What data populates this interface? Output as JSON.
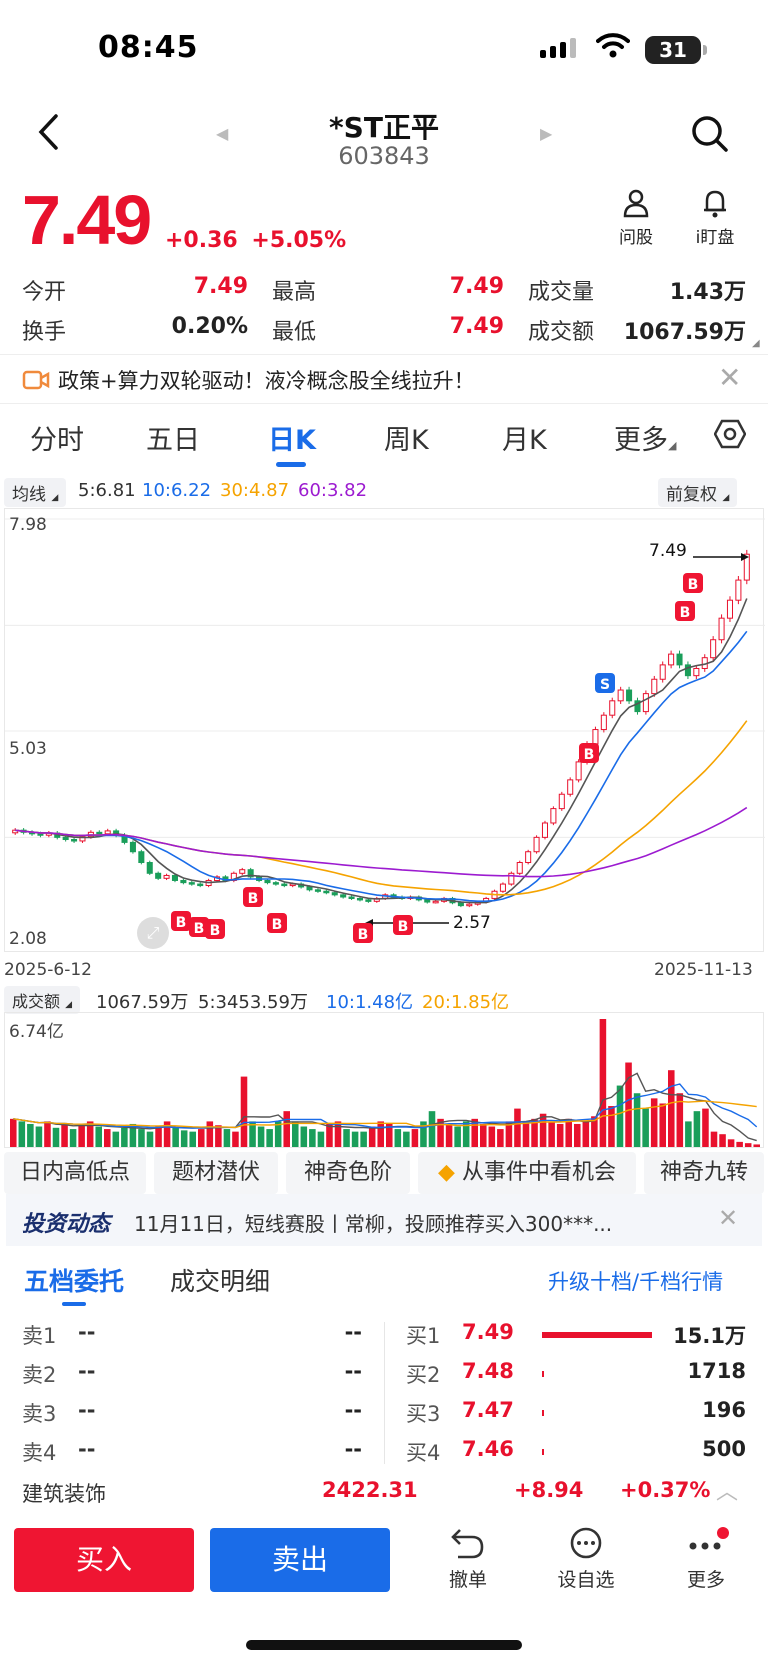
{
  "status_bar": {
    "time": "08:45",
    "battery": "31"
  },
  "header": {
    "name": "*ST正平",
    "code": "603843"
  },
  "quote": {
    "price": "7.49",
    "change": "+0.36",
    "change_pct": "+5.05%"
  },
  "actions": {
    "ask": "问股",
    "watch": "i盯盘"
  },
  "stats": {
    "open_label": "今开",
    "open": "7.49",
    "high_label": "最高",
    "high": "7.49",
    "vol_label": "成交量",
    "vol": "1.43万",
    "turn_label": "换手",
    "turn": "0.20%",
    "low_label": "最低",
    "low": "7.49",
    "amt_label": "成交额",
    "amt": "1067.59万"
  },
  "banner": {
    "text": "政策+算力双轮驱动！液冷概念股全线拉升！"
  },
  "tabs": [
    "分时",
    "五日",
    "日K",
    "周K",
    "月K",
    "更多"
  ],
  "ma_bar": {
    "label": "均线",
    "ma5": "5:6.81",
    "ma10": "10:6.22",
    "ma30": "30:4.87",
    "ma60": "60:3.82",
    "adjust": "前复权"
  },
  "chart": {
    "y_top": "7.98",
    "y_mid": "5.03",
    "y_bot": "2.08",
    "x_start": "2025-6-12",
    "x_end": "2025-11-13",
    "last_label": "7.49",
    "low_label": "2.57"
  },
  "chart_data": {
    "type": "candlestick",
    "ylim": [
      2.08,
      7.98
    ],
    "close": [
      3.65,
      3.62,
      3.6,
      3.58,
      3.61,
      3.55,
      3.52,
      3.5,
      3.56,
      3.62,
      3.6,
      3.64,
      3.58,
      3.48,
      3.35,
      3.2,
      3.05,
      2.98,
      3.02,
      2.95,
      2.92,
      2.9,
      2.88,
      2.95,
      3.0,
      2.95,
      3.05,
      3.1,
      3.0,
      2.95,
      2.92,
      2.9,
      2.88,
      2.9,
      2.86,
      2.82,
      2.8,
      2.78,
      2.75,
      2.72,
      2.7,
      2.68,
      2.66,
      2.7,
      2.75,
      2.72,
      2.7,
      2.72,
      2.68,
      2.65,
      2.66,
      2.7,
      2.64,
      2.6,
      2.62,
      2.65,
      2.7,
      2.8,
      2.9,
      3.05,
      3.2,
      3.35,
      3.55,
      3.75,
      3.95,
      4.15,
      4.35,
      4.6,
      4.85,
      5.05,
      5.25,
      5.45,
      5.6,
      5.45,
      5.3,
      5.55,
      5.75,
      5.95,
      6.1,
      5.95,
      5.8,
      5.9,
      6.05,
      6.3,
      6.6,
      6.85,
      7.13,
      7.49
    ]
  },
  "volume": {
    "label": "成交额",
    "value": "1067.59万",
    "ma5": "5:3453.59万",
    "ma10": "10:1.48亿",
    "ma20": "20:1.85亿",
    "top": "6.74亿",
    "bars": [
      0.22,
      0.2,
      0.18,
      0.16,
      0.2,
      0.15,
      0.18,
      0.14,
      0.17,
      0.2,
      0.16,
      0.14,
      0.12,
      0.15,
      0.18,
      0.14,
      0.12,
      0.16,
      0.2,
      0.15,
      0.13,
      0.12,
      0.14,
      0.2,
      0.17,
      0.14,
      0.12,
      0.55,
      0.2,
      0.16,
      0.14,
      0.2,
      0.28,
      0.2,
      0.16,
      0.14,
      0.12,
      0.18,
      0.2,
      0.14,
      0.12,
      0.12,
      0.16,
      0.2,
      0.18,
      0.14,
      0.12,
      0.14,
      0.2,
      0.28,
      0.22,
      0.18,
      0.16,
      0.2,
      0.22,
      0.18,
      0.16,
      0.14,
      0.2,
      0.3,
      0.2,
      0.22,
      0.26,
      0.2,
      0.18,
      0.22,
      0.18,
      0.2,
      0.24,
      1.0,
      0.32,
      0.48,
      0.66,
      0.42,
      0.3,
      0.38,
      0.34,
      0.6,
      0.42,
      0.2,
      0.28,
      0.3,
      0.12,
      0.1,
      0.06,
      0.04,
      0.03,
      0.02
    ],
    "up": [
      1,
      0,
      0,
      0,
      1,
      0,
      1,
      0,
      1,
      1,
      0,
      1,
      0,
      0,
      0,
      0,
      0,
      1,
      1,
      0,
      0,
      0,
      1,
      1,
      1,
      0,
      1,
      1,
      0,
      0,
      0,
      0,
      1,
      0,
      0,
      0,
      0,
      1,
      1,
      0,
      0,
      0,
      1,
      1,
      1,
      0,
      0,
      1,
      0,
      0,
      1,
      1,
      0,
      0,
      1,
      1,
      1,
      1,
      1,
      1,
      1,
      1,
      1,
      1,
      1,
      1,
      1,
      1,
      1,
      1,
      1,
      0,
      1,
      0,
      0,
      1,
      1,
      1,
      1,
      0,
      0,
      1,
      1,
      1,
      1,
      1,
      1,
      1
    ]
  },
  "features": [
    "日内高低点",
    "题材潜伏",
    "神奇色阶",
    "从事件中看机会",
    "神奇九转"
  ],
  "news": {
    "brand": "投资动态",
    "text": "11月11日，短线赛股丨常柳，投顾推荐买入300***..."
  },
  "orderbook": {
    "tab1": "五档委托",
    "tab2": "成交明细",
    "upgrade": "升级十档/千档行情",
    "sells": [
      {
        "label": "卖1",
        "price": "--",
        "vol": "--"
      },
      {
        "label": "卖2",
        "price": "--",
        "vol": "--"
      },
      {
        "label": "卖3",
        "price": "--",
        "vol": "--"
      },
      {
        "label": "卖4",
        "price": "--",
        "vol": "--"
      }
    ],
    "buys": [
      {
        "label": "买1",
        "price": "7.49",
        "vol": "15.1万"
      },
      {
        "label": "买2",
        "price": "7.48",
        "vol": "1718"
      },
      {
        "label": "买3",
        "price": "7.47",
        "vol": "196"
      },
      {
        "label": "买4",
        "price": "7.46",
        "vol": "500"
      }
    ]
  },
  "sector": {
    "name": "建筑装饰",
    "index": "2422.31",
    "change": "+8.94",
    "pct": "+0.37%"
  },
  "bottom": {
    "buy": "买入",
    "sell": "卖出",
    "cancel": "撤单",
    "watchlist": "设自选",
    "more": "更多"
  },
  "colors": {
    "up": "#e8112d",
    "down": "#1a9e5a",
    "accent": "#1a6ce8"
  }
}
